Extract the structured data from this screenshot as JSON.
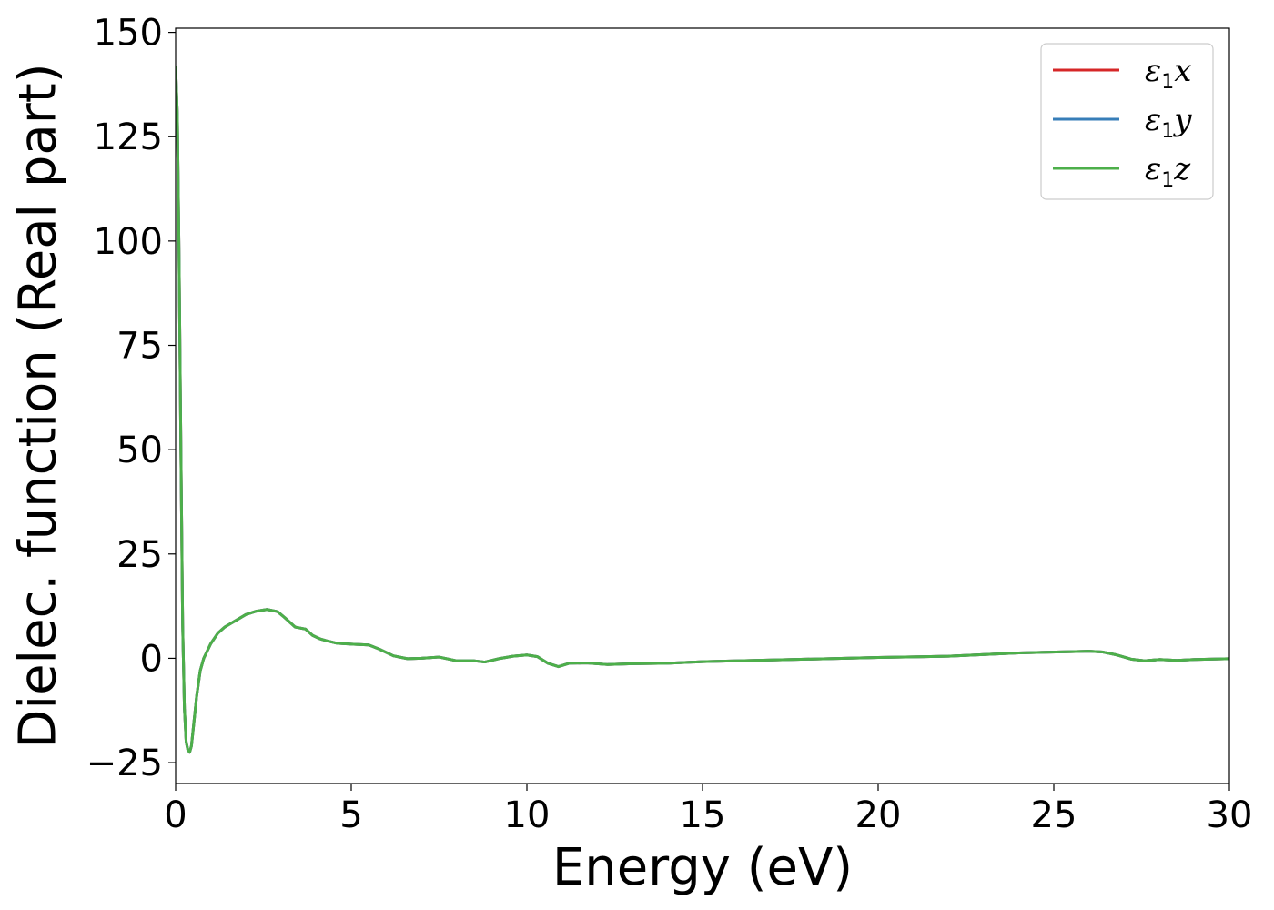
{
  "chart_data": {
    "type": "line",
    "xlabel": "Energy (eV)",
    "ylabel": "Dielec. function (Real part)",
    "xlim": [
      0,
      30
    ],
    "ylim": [
      -30,
      151
    ],
    "x_ticks": [
      "0",
      "5",
      "10",
      "15",
      "20",
      "25",
      "30"
    ],
    "y_ticks": [
      "−25",
      "0",
      "25",
      "50",
      "75",
      "100",
      "125",
      "150"
    ],
    "grid": false,
    "legend_position": "top-right",
    "series": [
      {
        "name": "ε",
        "name_sub": "1",
        "name_suffix": "x",
        "color": "#d62728",
        "x": [
          0,
          0.05,
          0.1,
          0.15,
          0.2,
          0.25,
          0.3,
          0.35,
          0.4,
          0.45,
          0.5,
          0.6,
          0.7,
          0.8,
          1.0,
          1.2,
          1.4,
          1.7,
          2.0,
          2.3,
          2.6,
          2.9,
          3.1,
          3.4,
          3.7,
          3.9,
          4.1,
          4.3,
          4.6,
          5.0,
          5.5,
          5.8,
          6.2,
          6.6,
          7.0,
          7.5,
          8.0,
          8.5,
          8.8,
          9.2,
          9.6,
          10.0,
          10.3,
          10.6,
          10.9,
          11.2,
          11.7,
          12.3,
          13.0,
          14.0,
          15.0,
          17.0,
          20.0,
          22.0,
          24.0,
          25.5,
          26.0,
          26.4,
          26.8,
          27.2,
          27.6,
          28.0,
          28.5,
          29.0,
          30.0
        ],
        "y": [
          142,
          130,
          95,
          50,
          8,
          -12,
          -20,
          -22,
          -22.5,
          -21,
          -17,
          -9,
          -3,
          0,
          3.5,
          6,
          7.5,
          9,
          10.5,
          11.3,
          11.7,
          11.2,
          9.8,
          7.5,
          7,
          5.5,
          4.7,
          4.2,
          3.6,
          3.4,
          3.2,
          2.2,
          0.6,
          -0.1,
          0,
          0.3,
          -0.6,
          -0.6,
          -0.9,
          -0.1,
          0.5,
          0.8,
          0.4,
          -1.2,
          -2,
          -1.2,
          -1.1,
          -1.5,
          -1.3,
          -1.2,
          -0.8,
          -0.4,
          0.2,
          0.5,
          1.3,
          1.6,
          1.7,
          1.5,
          0.8,
          -0.2,
          -0.6,
          -0.3,
          -0.5,
          -0.3,
          -0.1
        ]
      },
      {
        "name": "ε",
        "name_sub": "1",
        "name_suffix": "y",
        "color": "#377eb8",
        "x": [
          0,
          0.05,
          0.1,
          0.15,
          0.2,
          0.25,
          0.3,
          0.35,
          0.4,
          0.45,
          0.5,
          0.6,
          0.7,
          0.8,
          1.0,
          1.2,
          1.4,
          1.7,
          2.0,
          2.3,
          2.6,
          2.9,
          3.1,
          3.4,
          3.7,
          3.9,
          4.1,
          4.3,
          4.6,
          5.0,
          5.5,
          5.8,
          6.2,
          6.6,
          7.0,
          7.5,
          8.0,
          8.5,
          8.8,
          9.2,
          9.6,
          10.0,
          10.3,
          10.6,
          10.9,
          11.2,
          11.7,
          12.3,
          13.0,
          14.0,
          15.0,
          17.0,
          20.0,
          22.0,
          24.0,
          25.5,
          26.0,
          26.4,
          26.8,
          27.2,
          27.6,
          28.0,
          28.5,
          29.0,
          30.0
        ],
        "y": [
          142,
          130,
          95,
          50,
          8,
          -12,
          -20,
          -22,
          -22.5,
          -21,
          -17,
          -9,
          -3,
          0,
          3.5,
          6,
          7.5,
          9,
          10.5,
          11.3,
          11.7,
          11.2,
          9.8,
          7.5,
          7,
          5.5,
          4.7,
          4.2,
          3.6,
          3.4,
          3.2,
          2.2,
          0.6,
          -0.1,
          0,
          0.3,
          -0.6,
          -0.6,
          -0.9,
          -0.1,
          0.5,
          0.8,
          0.4,
          -1.2,
          -2,
          -1.2,
          -1.1,
          -1.5,
          -1.3,
          -1.2,
          -0.8,
          -0.4,
          0.2,
          0.5,
          1.3,
          1.6,
          1.7,
          1.5,
          0.8,
          -0.2,
          -0.6,
          -0.3,
          -0.5,
          -0.3,
          -0.1
        ]
      },
      {
        "name": "ε",
        "name_sub": "1",
        "name_suffix": "z",
        "color": "#4daf4a",
        "x": [
          0,
          0.05,
          0.1,
          0.15,
          0.2,
          0.25,
          0.3,
          0.35,
          0.4,
          0.45,
          0.5,
          0.6,
          0.7,
          0.8,
          1.0,
          1.2,
          1.4,
          1.7,
          2.0,
          2.3,
          2.6,
          2.9,
          3.1,
          3.4,
          3.7,
          3.9,
          4.1,
          4.3,
          4.6,
          5.0,
          5.5,
          5.8,
          6.2,
          6.6,
          7.0,
          7.5,
          8.0,
          8.5,
          8.8,
          9.2,
          9.6,
          10.0,
          10.3,
          10.6,
          10.9,
          11.2,
          11.7,
          12.3,
          13.0,
          14.0,
          15.0,
          17.0,
          20.0,
          22.0,
          24.0,
          25.5,
          26.0,
          26.4,
          26.8,
          27.2,
          27.6,
          28.0,
          28.5,
          29.0,
          30.0
        ],
        "y": [
          142,
          130,
          95,
          50,
          8,
          -12,
          -20,
          -22,
          -22.5,
          -21,
          -17,
          -9,
          -3,
          0,
          3.5,
          6,
          7.5,
          9,
          10.5,
          11.3,
          11.7,
          11.2,
          9.8,
          7.5,
          7,
          5.5,
          4.7,
          4.2,
          3.6,
          3.4,
          3.2,
          2.2,
          0.6,
          -0.1,
          0,
          0.3,
          -0.6,
          -0.6,
          -0.9,
          -0.1,
          0.5,
          0.8,
          0.4,
          -1.2,
          -2,
          -1.2,
          -1.1,
          -1.5,
          -1.3,
          -1.2,
          -0.8,
          -0.4,
          0.2,
          0.5,
          1.3,
          1.6,
          1.7,
          1.5,
          0.8,
          -0.2,
          -0.6,
          -0.3,
          -0.5,
          -0.3,
          -0.1
        ]
      }
    ]
  }
}
